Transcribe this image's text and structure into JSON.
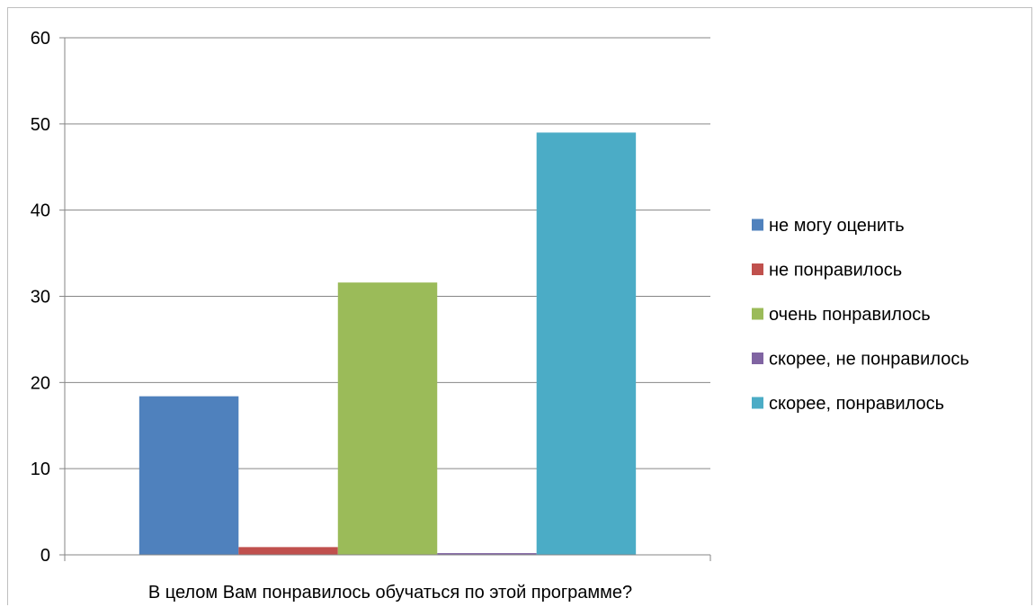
{
  "chart_data": {
    "type": "bar",
    "categories": [
      "В целом Вам понравилось обучаться по этой программе?"
    ],
    "series": [
      {
        "name": "не могу оценить",
        "values": [
          18.4
        ],
        "color": "#4f81bd"
      },
      {
        "name": "не понравилось",
        "values": [
          0.9
        ],
        "color": "#c0504d"
      },
      {
        "name": "очень понравилось",
        "values": [
          31.6
        ],
        "color": "#9bbb59"
      },
      {
        "name": "скорее, не понравилось",
        "values": [
          0.2
        ],
        "color": "#8064a2"
      },
      {
        "name": "скорее, понравилось",
        "values": [
          49.0
        ],
        "color": "#4bacc6"
      }
    ],
    "ylim": [
      0,
      60
    ],
    "yticks": [
      0,
      10,
      20,
      30,
      40,
      50,
      60
    ],
    "grid": true,
    "legend": "right",
    "title": "",
    "xlabel": "",
    "ylabel": ""
  }
}
